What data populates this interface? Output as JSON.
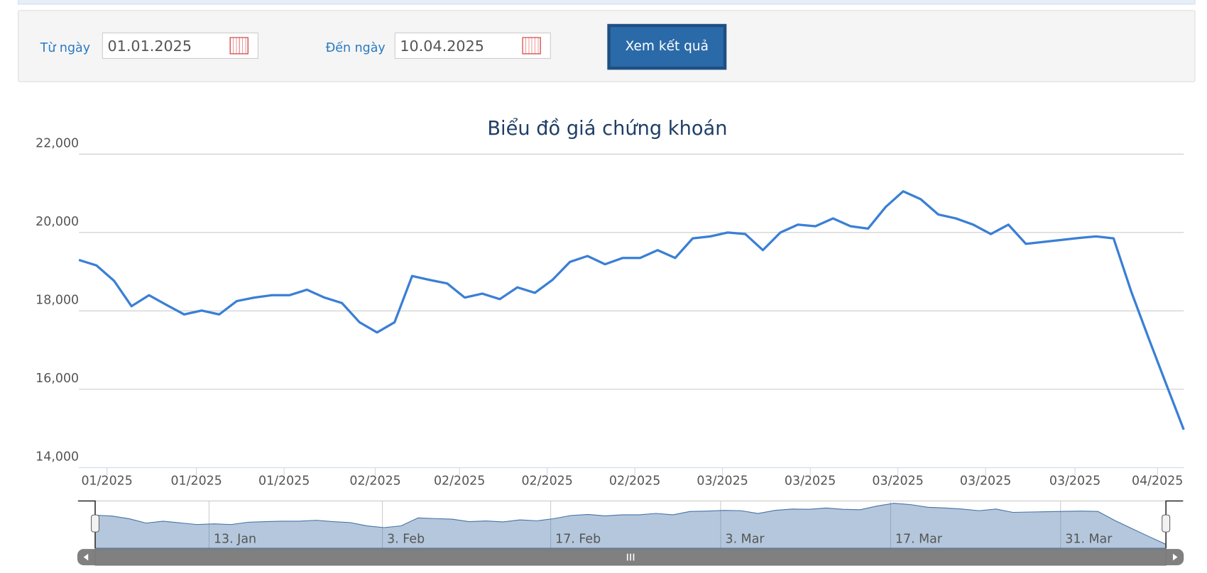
{
  "form": {
    "from_label": "Từ ngày",
    "from_value": "01.01.2025",
    "to_label": "Đến ngày",
    "to_value": "10.04.2025",
    "button": "Xem kết quả"
  },
  "chart_data": {
    "type": "line",
    "title": "Biểu đồ giá chứng khoán",
    "color": "#3a7fd5",
    "grid": true,
    "values": [
      19300,
      19160,
      18770,
      18120,
      18400,
      18150,
      17910,
      18010,
      17910,
      18250,
      18340,
      18400,
      18400,
      18540,
      18340,
      18200,
      17710,
      17450,
      17710,
      18890,
      18790,
      18700,
      18340,
      18440,
      18300,
      18600,
      18460,
      18790,
      19250,
      19400,
      19190,
      19350,
      19350,
      19550,
      19350,
      19850,
      19900,
      20000,
      19960,
      19550,
      20000,
      20200,
      20160,
      20360,
      20160,
      20100,
      20650,
      21050,
      20850,
      20460,
      20360,
      20200,
      19960,
      20200,
      19710,
      19760,
      19810,
      19860,
      19900,
      19850,
      18500,
      17300,
      16130,
      14970
    ],
    "xlim": [
      0,
      63
    ],
    "xticks": [
      {
        "value": 1.6,
        "label": "01/2025"
      },
      {
        "value": 6.7,
        "label": "01/2025"
      },
      {
        "value": 11.7,
        "label": "01/2025"
      },
      {
        "value": 16.9,
        "label": "02/2025"
      },
      {
        "value": 21.7,
        "label": "02/2025"
      },
      {
        "value": 26.7,
        "label": "02/2025"
      },
      {
        "value": 31.7,
        "label": "02/2025"
      },
      {
        "value": 36.7,
        "label": "03/2025"
      },
      {
        "value": 41.7,
        "label": "03/2025"
      },
      {
        "value": 46.7,
        "label": "03/2025"
      },
      {
        "value": 51.7,
        "label": "03/2025"
      },
      {
        "value": 56.8,
        "label": "03/2025"
      },
      {
        "value": 61.5,
        "label": "04/2025"
      }
    ],
    "ylim": [
      14000,
      22000
    ],
    "yticks": [
      {
        "value": 14000,
        "label": "14,000"
      },
      {
        "value": 16000,
        "label": "16,000"
      },
      {
        "value": 18000,
        "label": "18,000"
      },
      {
        "value": 20000,
        "label": "20,000"
      },
      {
        "value": 22000,
        "label": "22,000"
      }
    ],
    "navigator": {
      "xticks": [
        {
          "value": 6.7,
          "label": "13. Jan"
        },
        {
          "value": 16.9,
          "label": "3. Feb"
        },
        {
          "value": 26.8,
          "label": "17. Feb"
        },
        {
          "value": 36.8,
          "label": "3. Mar"
        },
        {
          "value": 46.8,
          "label": "17. Mar"
        },
        {
          "value": 56.8,
          "label": "31. Mar"
        }
      ]
    }
  }
}
